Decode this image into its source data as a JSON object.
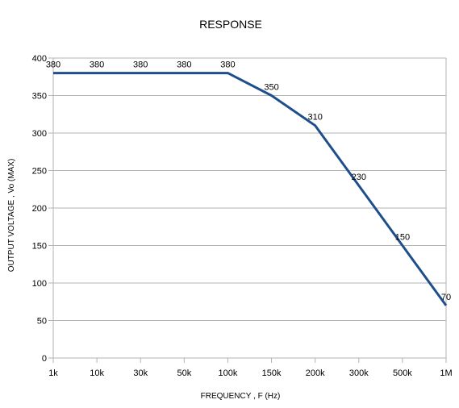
{
  "chart_data": {
    "type": "line",
    "title": "RESPONSE",
    "xlabel": "FREQUENCY , F (Hz)",
    "ylabel": "OUTPUT VOLTAGE , Vo (MAX)",
    "categories": [
      "1k",
      "10k",
      "30k",
      "50k",
      "100k",
      "150k",
      "200k",
      "300k",
      "500k",
      "1M"
    ],
    "series": [
      {
        "values": [
          380,
          380,
          380,
          380,
          380,
          350,
          310,
          230,
          150,
          70
        ],
        "data_labels": [
          "380",
          "380",
          "380",
          "380",
          "380",
          "350",
          "310",
          "230",
          "150",
          "70"
        ]
      }
    ],
    "ylim": [
      0,
      400
    ],
    "yticks": [
      "0",
      "50",
      "100",
      "150",
      "200",
      "250",
      "300",
      "350",
      "400"
    ],
    "grid": "horizontal",
    "legend": "none",
    "colors": {
      "line": "#1f4e8c",
      "grid": "#b3b3b3",
      "axis": "#b3b3b3"
    }
  }
}
